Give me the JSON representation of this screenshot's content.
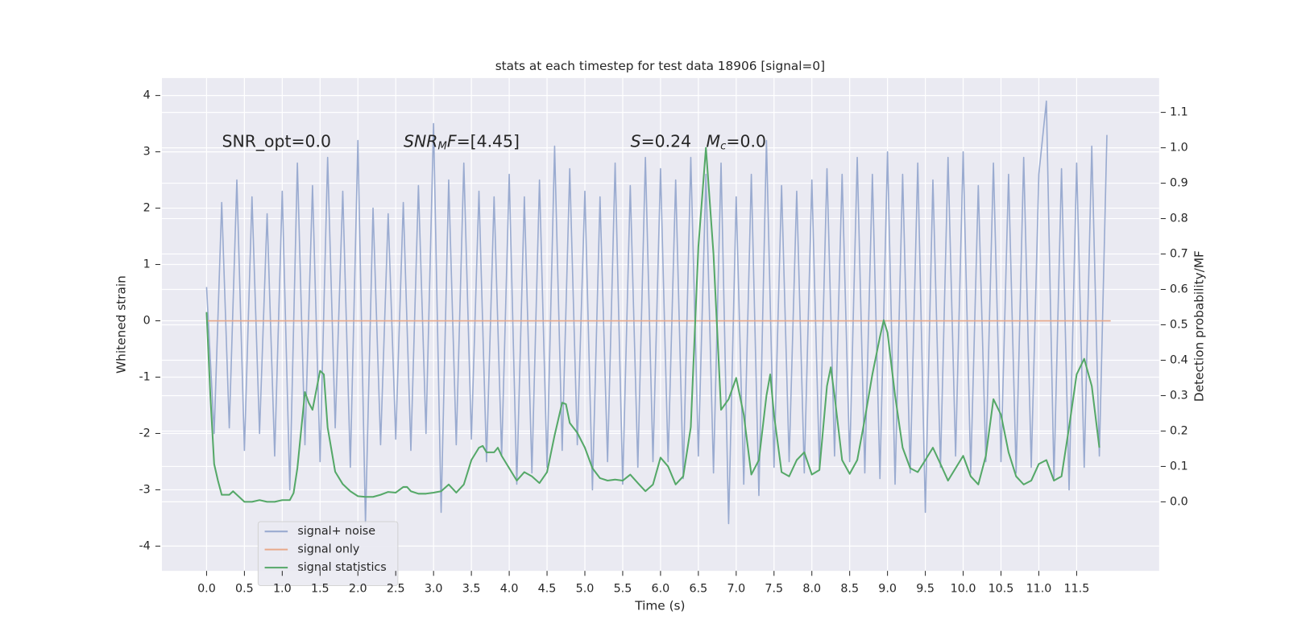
{
  "chart_data": {
    "type": "line",
    "title": "stats at each timestep for test data 18906 [signal=0]",
    "x_label": "Time (s)",
    "y_label": "Whitened strain",
    "y2_label": "Detection probability/MF",
    "annotations": [
      [
        "SNR_opt=0.0"
      ],
      [
        "SNR",
        "M",
        "F",
        "=[4.45]"
      ],
      [
        "S",
        "=0.24"
      ],
      [
        "M",
        "c",
        "=0.0"
      ]
    ],
    "xlim": [
      -0.59,
      12.59
    ],
    "ylim": [
      -4.44,
      4.31
    ],
    "y2lim": [
      -0.195,
      1.197
    ],
    "xticks": [
      {
        "value": 0,
        "label": "0.0"
      },
      0.5,
      {
        "value": 1,
        "label": "1.0"
      },
      1.5,
      {
        "value": 2,
        "label": "2.0"
      },
      2.5,
      {
        "value": 3,
        "label": "3.0"
      },
      3.5,
      {
        "value": 4,
        "label": "4.0"
      },
      4.5,
      {
        "value": 5,
        "label": "5.0"
      },
      5.5,
      {
        "value": 6,
        "label": "6.0"
      },
      6.5,
      {
        "value": 7,
        "label": "7.0"
      },
      7.5,
      {
        "value": 8,
        "label": "8.0"
      },
      8.5,
      {
        "value": 9,
        "label": "9.0"
      },
      9.5,
      {
        "value": 10,
        "label": "10.0"
      },
      10.5,
      {
        "value": 11,
        "label": "11.0"
      },
      11.5
    ],
    "yticks": [
      -4,
      -3,
      -2,
      -1,
      0,
      1,
      2,
      3,
      4
    ],
    "y2ticks": [
      {
        "value": 0,
        "label": "0.0"
      },
      0.1,
      0.2,
      0.3,
      0.4,
      0.5,
      0.6,
      0.7,
      0.8,
      0.9,
      {
        "value": 1,
        "label": "1.0"
      },
      1.1
    ],
    "grid": true,
    "legend": "lower left",
    "series": [
      {
        "name": "signal+ noise",
        "color": "#9aabd0",
        "x": [
          0,
          0.1,
          0.2,
          0.3,
          0.4,
          0.5,
          0.6,
          0.7,
          0.8,
          0.9,
          1,
          1.1,
          1.2,
          1.3,
          1.4,
          1.5,
          1.6,
          1.7,
          1.8,
          1.9,
          2,
          2.1,
          2.2,
          2.3,
          2.4,
          2.5,
          2.6,
          2.7,
          2.8,
          2.9,
          3,
          3.1,
          3.2,
          3.3,
          3.4,
          3.5,
          3.6,
          3.7,
          3.8,
          3.9,
          4,
          4.1,
          4.2,
          4.3,
          4.4,
          4.5,
          4.6,
          4.7,
          4.8,
          4.9,
          5,
          5.1,
          5.2,
          5.3,
          5.4,
          5.5,
          5.6,
          5.7,
          5.8,
          5.9,
          6,
          6.1,
          6.2,
          6.3,
          6.4,
          6.5,
          6.6,
          6.7,
          6.8,
          6.9,
          7,
          7.1,
          7.2,
          7.3,
          7.4,
          7.5,
          7.6,
          7.7,
          7.8,
          7.9,
          8,
          8.1,
          8.2,
          8.3,
          8.4,
          8.5,
          8.6,
          8.7,
          8.8,
          8.9,
          9,
          9.1,
          9.2,
          9.3,
          9.4,
          9.5,
          9.6,
          9.7,
          9.8,
          9.9,
          10,
          10.1,
          10.2,
          10.3,
          10.4,
          10.5,
          10.6,
          10.7,
          10.8,
          10.9,
          11,
          11.1,
          11.2,
          11.3,
          11.4,
          11.5,
          11.6,
          11.7,
          11.8,
          11.9
        ],
        "values": [
          0.6,
          -2.0,
          2.1,
          -1.9,
          2.5,
          -2.3,
          2.2,
          -2.0,
          1.9,
          -2.4,
          2.3,
          -3.0,
          2.8,
          -2.2,
          2.4,
          -2.5,
          2.9,
          -1.9,
          2.3,
          -2.6,
          3.2,
          -3.6,
          2.0,
          -2.2,
          1.9,
          -2.1,
          2.1,
          -2.3,
          2.4,
          -2.0,
          3.5,
          -3.4,
          2.5,
          -2.2,
          2.8,
          -2.1,
          2.3,
          -2.5,
          2.2,
          -2.4,
          2.6,
          -2.9,
          2.2,
          -2.7,
          2.5,
          -2.6,
          3.1,
          -2.3,
          2.7,
          -2.2,
          2.3,
          -3.0,
          2.2,
          -2.5,
          2.8,
          -2.9,
          2.4,
          -2.6,
          2.9,
          -2.5,
          2.7,
          -2.5,
          2.5,
          -2.8,
          2.9,
          -2.4,
          2.6,
          -2.7,
          2.8,
          -3.6,
          2.2,
          -2.9,
          2.6,
          -3.1,
          3.2,
          -2.6,
          2.4,
          -2.5,
          2.3,
          -2.7,
          2.5,
          -2.6,
          2.7,
          -2.4,
          2.6,
          -2.5,
          2.9,
          -2.7,
          2.6,
          -2.8,
          3.0,
          -2.9,
          2.6,
          -2.7,
          2.8,
          -3.4,
          2.5,
          -2.6,
          2.9,
          -2.4,
          3.0,
          -2.7,
          2.4,
          -2.5,
          2.8,
          -2.5,
          2.6,
          -2.7,
          2.9,
          -2.6,
          2.6,
          3.9,
          -2.8,
          2.7,
          -3.0,
          2.8,
          -2.6,
          3.1,
          -2.4,
          3.3
        ]
      },
      {
        "name": "signal only",
        "color": "#e8a98a",
        "x": [
          0,
          11.95
        ],
        "values": [
          0,
          0
        ]
      },
      {
        "name": "signal statistics",
        "color": "#55a868",
        "axis": "y2",
        "x": [
          0,
          0.05,
          0.1,
          0.15,
          0.2,
          0.3,
          0.35,
          0.45,
          0.5,
          0.6,
          0.7,
          0.8,
          0.9,
          1,
          1.1,
          1.15,
          1.2,
          1.3,
          1.35,
          1.4,
          1.5,
          1.55,
          1.6,
          1.7,
          1.8,
          1.9,
          2,
          2.1,
          2.2,
          2.3,
          2.4,
          2.5,
          2.6,
          2.65,
          2.7,
          2.8,
          2.9,
          3,
          3.1,
          3.2,
          3.3,
          3.4,
          3.5,
          3.6,
          3.65,
          3.7,
          3.8,
          3.85,
          3.9,
          4,
          4.1,
          4.2,
          4.3,
          4.4,
          4.5,
          4.6,
          4.7,
          4.75,
          4.8,
          4.9,
          5,
          5.1,
          5.2,
          5.3,
          5.4,
          5.5,
          5.6,
          5.7,
          5.8,
          5.9,
          6,
          6.1,
          6.2,
          6.3,
          6.4,
          6.5,
          6.6,
          6.7,
          6.8,
          6.9,
          7,
          7.1,
          7.2,
          7.3,
          7.4,
          7.45,
          7.5,
          7.6,
          7.7,
          7.8,
          7.9,
          8,
          8.1,
          8.2,
          8.25,
          8.3,
          8.4,
          8.5,
          8.6,
          8.7,
          8.8,
          8.9,
          8.95,
          9,
          9.1,
          9.2,
          9.3,
          9.4,
          9.5,
          9.6,
          9.7,
          9.8,
          9.9,
          10,
          10.1,
          10.2,
          10.3,
          10.4,
          10.5,
          10.6,
          10.7,
          10.8,
          10.9,
          11,
          11.1,
          11.2,
          11.3,
          11.4,
          11.5,
          11.6,
          11.7,
          11.8
        ],
        "values": [
          0.536,
          0.3,
          0.107,
          0.06,
          0.02,
          0.02,
          0.03,
          0.01,
          0.0,
          0.0,
          0.005,
          0.0,
          0.0,
          0.005,
          0.005,
          0.025,
          0.095,
          0.31,
          0.28,
          0.26,
          0.37,
          0.36,
          0.21,
          0.085,
          0.05,
          0.03,
          0.016,
          0.014,
          0.014,
          0.02,
          0.028,
          0.026,
          0.042,
          0.042,
          0.03,
          0.023,
          0.023,
          0.026,
          0.03,
          0.049,
          0.026,
          0.049,
          0.118,
          0.153,
          0.158,
          0.14,
          0.14,
          0.153,
          0.13,
          0.095,
          0.06,
          0.084,
          0.072,
          0.053,
          0.084,
          0.188,
          0.28,
          0.276,
          0.223,
          0.195,
          0.153,
          0.095,
          0.067,
          0.06,
          0.063,
          0.06,
          0.077,
          0.053,
          0.03,
          0.049,
          0.125,
          0.1,
          0.049,
          0.072,
          0.211,
          0.72,
          1.0,
          0.7,
          0.26,
          0.29,
          0.35,
          0.246,
          0.077,
          0.118,
          0.3,
          0.36,
          0.246,
          0.084,
          0.072,
          0.118,
          0.14,
          0.077,
          0.09,
          0.327,
          0.38,
          0.3,
          0.118,
          0.079,
          0.118,
          0.234,
          0.36,
          0.466,
          0.513,
          0.478,
          0.3,
          0.153,
          0.095,
          0.084,
          0.118,
          0.153,
          0.107,
          0.06,
          0.095,
          0.13,
          0.072,
          0.049,
          0.13,
          0.29,
          0.246,
          0.14,
          0.072,
          0.049,
          0.06,
          0.107,
          0.118,
          0.06,
          0.072,
          0.211,
          0.36,
          0.404,
          0.327,
          0.153
        ]
      }
    ]
  }
}
